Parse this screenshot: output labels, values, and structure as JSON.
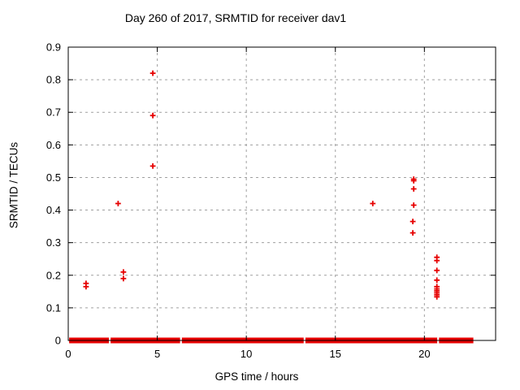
{
  "chart_data": {
    "type": "scatter",
    "title": "Day 260 of 2017, SRMTID for receiver dav1",
    "xlabel": "GPS time / hours",
    "ylabel": "SRMTID / TECUs",
    "xlim": [
      0,
      24
    ],
    "ylim": [
      0,
      0.9
    ],
    "grid": true,
    "legend": "none",
    "xticks": [
      0,
      5,
      10,
      15,
      20
    ],
    "xtick_labels": [
      "0",
      "5",
      "10",
      "15",
      "20"
    ],
    "yticks": [
      0,
      0.1,
      0.2,
      0.3,
      0.4,
      0.5,
      0.6,
      0.7,
      0.8,
      0.9
    ],
    "ytick_labels": [
      "0",
      "0.1",
      "0.2",
      "0.3",
      "0.4",
      "0.5",
      "0.6",
      "0.7",
      "0.8",
      "0.9"
    ],
    "series": [
      {
        "name": "SRMTID",
        "marker": "plus",
        "color": "#e60000",
        "points": [
          [
            1.0,
            0.175
          ],
          [
            1.0,
            0.165
          ],
          [
            2.8,
            0.42
          ],
          [
            3.1,
            0.21
          ],
          [
            3.1,
            0.19
          ],
          [
            4.75,
            0.82
          ],
          [
            4.75,
            0.69
          ],
          [
            4.75,
            0.535
          ],
          [
            17.1,
            0.42
          ],
          [
            19.4,
            0.495
          ],
          [
            19.4,
            0.49
          ],
          [
            19.4,
            0.465
          ],
          [
            19.4,
            0.415
          ],
          [
            19.35,
            0.365
          ],
          [
            19.35,
            0.33
          ],
          [
            20.7,
            0.255
          ],
          [
            20.7,
            0.245
          ],
          [
            20.7,
            0.215
          ],
          [
            20.7,
            0.185
          ],
          [
            20.7,
            0.165
          ],
          [
            20.7,
            0.158
          ],
          [
            20.7,
            0.152
          ],
          [
            20.7,
            0.146
          ],
          [
            20.7,
            0.14
          ],
          [
            20.7,
            0.134
          ]
        ]
      }
    ],
    "zero_band_segments": [
      [
        0.05,
        2.28
      ],
      [
        2.38,
        6.28
      ],
      [
        6.38,
        13.22
      ],
      [
        13.32,
        20.72
      ],
      [
        20.82,
        22.75
      ]
    ],
    "colors": {
      "marker": "#e60000",
      "grid": "#a0a0a0",
      "axis": "#000000",
      "background": "#ffffff"
    }
  }
}
